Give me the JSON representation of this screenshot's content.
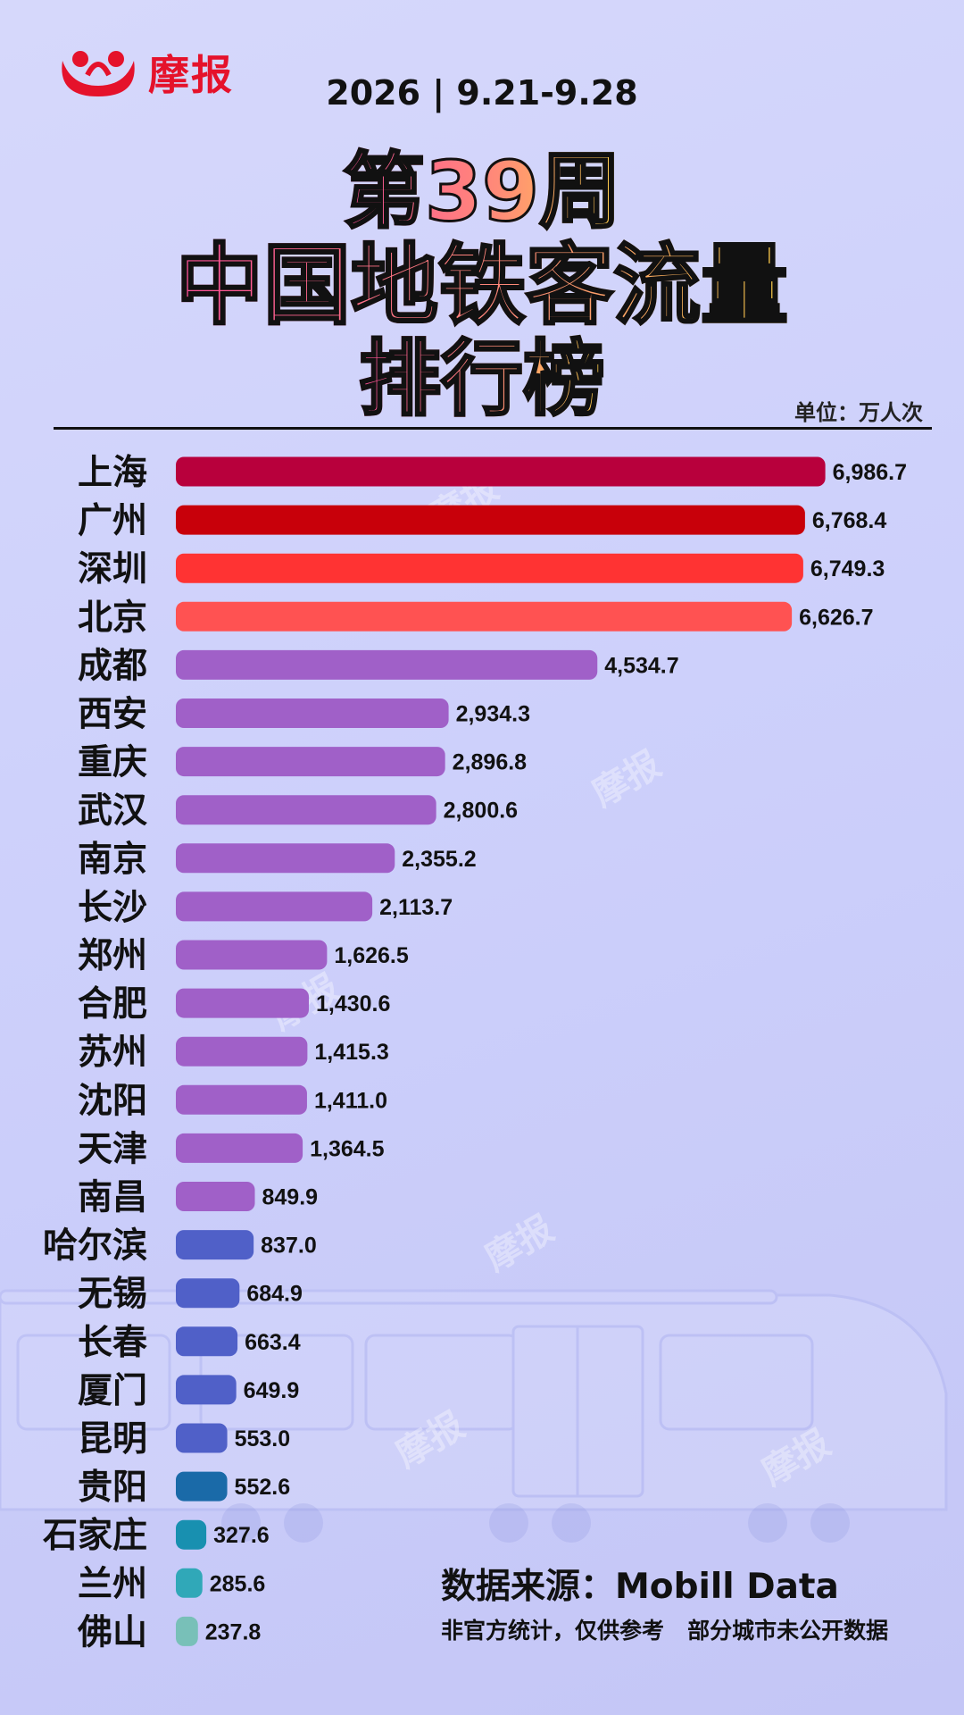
{
  "logo": {
    "text": "摩报"
  },
  "header": {
    "date": "2026 | 9.21-9.28",
    "title_line1": "第39周",
    "title_line2": "中国地铁客流量",
    "title_line3": "排行榜",
    "unit": "单位：万人次"
  },
  "watermark": "摩报",
  "chart_data": {
    "type": "bar",
    "orientation": "horizontal",
    "categories": [
      "上海",
      "广州",
      "深圳",
      "北京",
      "成都",
      "西安",
      "重庆",
      "武汉",
      "南京",
      "长沙",
      "郑州",
      "合肥",
      "苏州",
      "沈阳",
      "天津",
      "南昌",
      "哈尔滨",
      "无锡",
      "长春",
      "厦门",
      "昆明",
      "贵阳",
      "石家庄",
      "兰州",
      "佛山"
    ],
    "values": [
      6986.7,
      6768.4,
      6749.3,
      6626.7,
      4534.7,
      2934.3,
      2896.8,
      2800.6,
      2355.2,
      2113.7,
      1626.5,
      1430.6,
      1415.3,
      1411.0,
      1364.5,
      849.9,
      837.0,
      684.9,
      663.4,
      649.9,
      553.0,
      552.6,
      327.6,
      285.6,
      237.8
    ],
    "value_labels": [
      "6,986.7",
      "6,768.4",
      "6,749.3",
      "6,626.7",
      "4,534.7",
      "2,934.3",
      "2,896.8",
      "2,800.6",
      "2,355.2",
      "2,113.7",
      "1,626.5",
      "1,430.6",
      "1,415.3",
      "1,411.0",
      "1,364.5",
      "849.9",
      "837.0",
      "684.9",
      "663.4",
      "649.9",
      "553.0",
      "552.6",
      "327.6",
      "285.6",
      "237.8"
    ],
    "colors": [
      "#b8003c",
      "#c8000a",
      "#ff3333",
      "#ff5252",
      "#a060c8",
      "#a060c8",
      "#a060c8",
      "#a060c8",
      "#a060c8",
      "#a060c8",
      "#a060c8",
      "#a060c8",
      "#a060c8",
      "#a060c8",
      "#a060c8",
      "#a060c8",
      "#5060c8",
      "#5060c8",
      "#5060c8",
      "#5060c8",
      "#5060c8",
      "#1a6aa8",
      "#1890b0",
      "#30a8b8",
      "#78c0b8"
    ],
    "xlim": [
      0,
      7000
    ],
    "unit": "万人次",
    "grid": false,
    "legend": "none"
  },
  "footer": {
    "source": "数据来源：Mobill Data",
    "note": "非官方统计，仅供参考   部分城市未公开数据"
  }
}
